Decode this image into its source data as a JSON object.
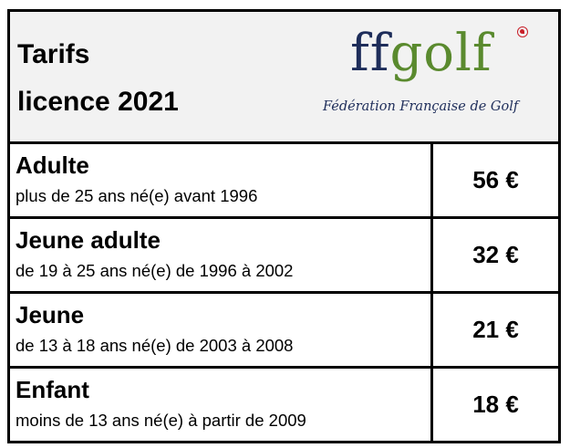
{
  "header": {
    "title_line1": "Tarifs",
    "title_line2": "licence 2021",
    "logo": {
      "word_part1": "ff",
      "word_part2": "golf",
      "subtitle": "Fédération Française de Golf",
      "colors": {
        "navy": "#1e2d5a",
        "green": "#5a8a2e",
        "red": "#c8202a"
      }
    }
  },
  "tarifs": [
    {
      "category": "Adulte",
      "description": "plus de 25 ans né(e) avant 1996",
      "price": "56 €"
    },
    {
      "category": "Jeune adulte",
      "description": "de 19 à 25 ans né(e) de 1996 à 2002",
      "price": "32 €"
    },
    {
      "category": "Jeune",
      "description": "de 13 à 18 ans né(e) de 2003 à 2008",
      "price": "21 €"
    },
    {
      "category": "Enfant",
      "description": "moins de 13 ans né(e) à partir de 2009",
      "price": "18 €"
    }
  ]
}
